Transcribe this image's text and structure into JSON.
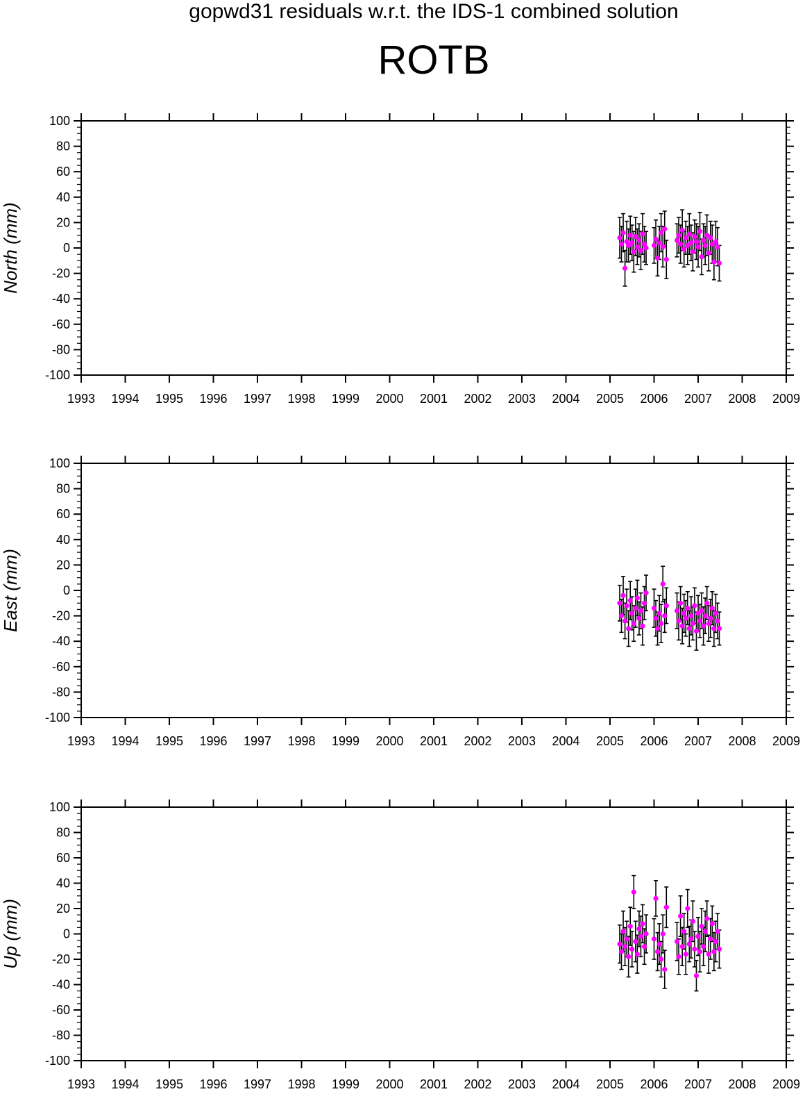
{
  "figure": {
    "title": "gopwd31 residuals w.r.t. the IDS-1 combined solution",
    "station": "ROTB"
  },
  "colors": {
    "point": "#ff00ff",
    "errorbar": "#000000",
    "axis": "#000000"
  },
  "chart_data": [
    {
      "type": "scatter",
      "ylabel": "North (mm)",
      "xlim": [
        1993,
        2009
      ],
      "ylim": [
        -100,
        100
      ],
      "x_ticks": [
        1993,
        1994,
        1995,
        1996,
        1997,
        1998,
        1999,
        2000,
        2001,
        2002,
        2003,
        2004,
        2005,
        2006,
        2007,
        2008,
        2009
      ],
      "y_ticks": [
        -100,
        -80,
        -60,
        -40,
        -20,
        0,
        20,
        40,
        60,
        80,
        100
      ],
      "grid": false,
      "series": [
        {
          "x": [
            2005.22,
            2005.26,
            2005.3,
            2005.34,
            2005.38,
            2005.42,
            2005.46,
            2005.5,
            2005.54,
            2005.58,
            2005.62,
            2005.66,
            2005.7,
            2005.74,
            2005.78,
            2005.82,
            2006.0,
            2006.04,
            2006.08,
            2006.12,
            2006.16,
            2006.2,
            2006.24,
            2006.28,
            2006.52,
            2006.56,
            2006.6,
            2006.64,
            2006.68,
            2006.72,
            2006.76,
            2006.8,
            2006.84,
            2006.88,
            2006.92,
            2006.96,
            2007.0,
            2007.04,
            2007.08,
            2007.12,
            2007.16,
            2007.2,
            2007.24,
            2007.28,
            2007.32,
            2007.36,
            2007.4,
            2007.44,
            2007.48
          ],
          "y": [
            8,
            3,
            12,
            -16,
            5,
            2,
            10,
            4,
            -3,
            9,
            1,
            6,
            -2,
            11,
            3,
            0,
            2,
            7,
            -8,
            4,
            12,
            1,
            15,
            -9,
            6,
            10,
            3,
            14,
            -1,
            8,
            2,
            11,
            4,
            -3,
            9,
            5,
            1,
            13,
            -7,
            6,
            2,
            10,
            -4,
            8,
            3,
            -11,
            5,
            1,
            -12
          ],
          "err": [
            16,
            14,
            15,
            14,
            16,
            13,
            15,
            14,
            16,
            15,
            14,
            13,
            15,
            16,
            14,
            13,
            14,
            15,
            14,
            13,
            15,
            16,
            14,
            15,
            13,
            14,
            15,
            16,
            14,
            13,
            15,
            16,
            14,
            15,
            13,
            14,
            16,
            15,
            14,
            13,
            15,
            16,
            14,
            13,
            15,
            14,
            16,
            15,
            14
          ]
        }
      ]
    },
    {
      "type": "scatter",
      "ylabel": "East (mm)",
      "xlim": [
        1993,
        2009
      ],
      "ylim": [
        -100,
        100
      ],
      "x_ticks": [
        1993,
        1994,
        1995,
        1996,
        1997,
        1998,
        1999,
        2000,
        2001,
        2002,
        2003,
        2004,
        2005,
        2006,
        2007,
        2008,
        2009
      ],
      "y_ticks": [
        -100,
        -80,
        -60,
        -40,
        -20,
        0,
        20,
        40,
        60,
        80,
        100
      ],
      "grid": false,
      "series": [
        {
          "x": [
            2005.22,
            2005.26,
            2005.3,
            2005.34,
            2005.38,
            2005.42,
            2005.46,
            2005.5,
            2005.54,
            2005.58,
            2005.62,
            2005.66,
            2005.7,
            2005.74,
            2005.78,
            2005.82,
            2006.0,
            2006.04,
            2006.08,
            2006.12,
            2006.16,
            2006.2,
            2006.24,
            2006.28,
            2006.52,
            2006.56,
            2006.6,
            2006.64,
            2006.68,
            2006.72,
            2006.76,
            2006.8,
            2006.84,
            2006.88,
            2006.92,
            2006.96,
            2007.0,
            2007.04,
            2007.08,
            2007.12,
            2007.16,
            2007.2,
            2007.24,
            2007.28,
            2007.32,
            2007.36,
            2007.4,
            2007.44,
            2007.48
          ],
          "y": [
            -10,
            -20,
            -4,
            -24,
            -12,
            -30,
            -8,
            -18,
            -26,
            -14,
            -6,
            -22,
            -16,
            -28,
            -10,
            -2,
            -14,
            -22,
            -30,
            -18,
            -26,
            5,
            -20,
            -12,
            -16,
            -24,
            -10,
            -28,
            -18,
            -22,
            -14,
            -30,
            -20,
            -26,
            -12,
            -32,
            -18,
            -24,
            -16,
            -28,
            -20,
            -10,
            -26,
            -22,
            -14,
            -30,
            -18,
            -24,
            -30
          ],
          "err": [
            14,
            13,
            15,
            14,
            13,
            14,
            15,
            13,
            14,
            15,
            14,
            13,
            14,
            15,
            13,
            14,
            15,
            14,
            13,
            14,
            15,
            14,
            13,
            14,
            14,
            15,
            13,
            14,
            15,
            14,
            13,
            14,
            15,
            13,
            14,
            15,
            14,
            13,
            14,
            15,
            14,
            13,
            14,
            15,
            13,
            14,
            15,
            14,
            13
          ]
        }
      ]
    },
    {
      "type": "scatter",
      "ylabel": "Up (mm)",
      "xlim": [
        1993,
        2009
      ],
      "ylim": [
        -100,
        100
      ],
      "x_ticks": [
        1993,
        1994,
        1995,
        1996,
        1997,
        1998,
        1999,
        2000,
        2001,
        2002,
        2003,
        2004,
        2005,
        2006,
        2007,
        2008,
        2009
      ],
      "y_ticks": [
        -100,
        -80,
        -60,
        -40,
        -20,
        0,
        20,
        40,
        60,
        80,
        100
      ],
      "grid": false,
      "series": [
        {
          "x": [
            2005.22,
            2005.26,
            2005.3,
            2005.34,
            2005.38,
            2005.42,
            2005.46,
            2005.5,
            2005.54,
            2005.58,
            2005.62,
            2005.66,
            2005.7,
            2005.74,
            2005.78,
            2005.82,
            2006.0,
            2006.04,
            2006.08,
            2006.12,
            2006.16,
            2006.2,
            2006.24,
            2006.28,
            2006.52,
            2006.56,
            2006.6,
            2006.64,
            2006.68,
            2006.72,
            2006.76,
            2006.8,
            2006.84,
            2006.88,
            2006.92,
            2006.96,
            2007.0,
            2007.04,
            2007.08,
            2007.12,
            2007.16,
            2007.2,
            2007.24,
            2007.28,
            2007.32,
            2007.36,
            2007.4,
            2007.44,
            2007.48
          ],
          "y": [
            -8,
            -14,
            2,
            -10,
            -4,
            -18,
            6,
            -12,
            33,
            -6,
            -16,
            4,
            -2,
            8,
            -10,
            0,
            -4,
            28,
            -14,
            -8,
            -20,
            0,
            -28,
            21,
            -6,
            -18,
            14,
            -10,
            2,
            -16,
            20,
            -8,
            -4,
            10,
            -12,
            -33,
            -2,
            -14,
            6,
            -10,
            2,
            12,
            -16,
            -4,
            8,
            -14,
            -6,
            2,
            -12
          ],
          "err": [
            15,
            14,
            16,
            15,
            14,
            16,
            15,
            14,
            13,
            16,
            15,
            14,
            16,
            15,
            14,
            15,
            16,
            14,
            15,
            16,
            14,
            15,
            15,
            16,
            15,
            14,
            16,
            15,
            14,
            16,
            15,
            14,
            15,
            16,
            14,
            12,
            15,
            16,
            14,
            15,
            16,
            14,
            15,
            16,
            14,
            15,
            16,
            14,
            15
          ]
        }
      ]
    }
  ]
}
